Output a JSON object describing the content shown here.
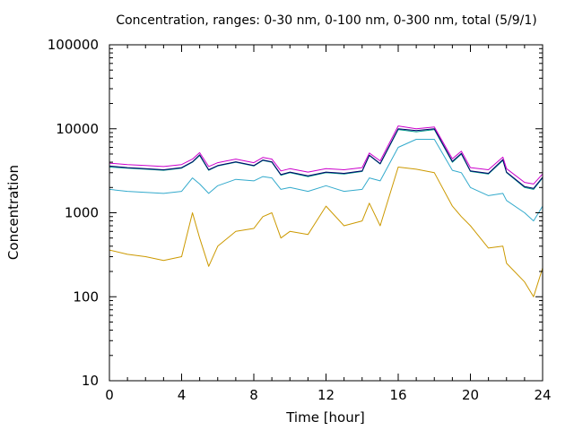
{
  "chart_data": {
    "type": "line",
    "title": "Concentration, ranges: 0-30 nm, 0-100 nm, 0-300 nm, total (5/9/1)",
    "xlabel": "Time [hour]",
    "ylabel": "Concentration",
    "xlim": [
      0,
      24
    ],
    "ylim": [
      10,
      100000
    ],
    "yscale": "log",
    "grid": false,
    "legend": "none",
    "xticks": [
      0,
      4,
      8,
      12,
      16,
      20,
      24
    ],
    "xtick_labels": [
      "0",
      "4",
      "8",
      "12",
      "16",
      "20",
      "24"
    ],
    "yticks": [
      10,
      100,
      1000,
      10000,
      100000
    ],
    "ytick_labels": [
      "10",
      "100",
      "1000",
      "10000",
      "100000"
    ],
    "x": [
      0,
      1,
      2,
      3,
      4,
      4.6,
      5,
      5.5,
      6,
      7,
      8,
      8.5,
      9,
      9.5,
      10,
      11,
      12,
      13,
      14,
      14.4,
      15,
      16,
      17,
      18,
      19,
      19.5,
      20,
      21,
      21.8,
      22,
      23,
      23.5,
      24
    ],
    "series": [
      {
        "color": "#cc9900",
        "values": [
          360,
          320,
          300,
          270,
          300,
          1000,
          500,
          230,
          400,
          600,
          650,
          900,
          1000,
          500,
          600,
          550,
          1200,
          700,
          800,
          1300,
          700,
          3500,
          3300,
          3000,
          1200,
          900,
          700,
          380,
          400,
          250,
          150,
          100,
          220
        ]
      },
      {
        "color": "#33aacc",
        "values": [
          1900,
          1800,
          1750,
          1700,
          1800,
          2600,
          2200,
          1700,
          2100,
          2500,
          2400,
          2700,
          2600,
          1900,
          2000,
          1800,
          2100,
          1800,
          1900,
          2600,
          2400,
          6000,
          7500,
          7500,
          3200,
          3000,
          2000,
          1600,
          1700,
          1400,
          1000,
          800,
          1200
        ]
      },
      {
        "color": "#009988",
        "values": [
          3500,
          3400,
          3300,
          3200,
          3400,
          4000,
          4800,
          3200,
          3600,
          4000,
          3600,
          4200,
          4000,
          2800,
          3000,
          2700,
          3000,
          2900,
          3100,
          4800,
          3800,
          9800,
          9200,
          9800,
          4000,
          5000,
          3100,
          2900,
          4200,
          3000,
          2000,
          1900,
          2600
        ]
      },
      {
        "color": "#000066",
        "values": [
          3600,
          3450,
          3350,
          3250,
          3450,
          4050,
          4900,
          3250,
          3650,
          4050,
          3650,
          4250,
          4050,
          2850,
          3050,
          2750,
          3050,
          2950,
          3150,
          4850,
          3850,
          10000,
          9500,
          10000,
          4100,
          5100,
          3150,
          2950,
          4300,
          3050,
          2050,
          1950,
          2650
        ]
      },
      {
        "color": "#cc00cc",
        "values": [
          3900,
          3750,
          3650,
          3550,
          3750,
          4350,
          5200,
          3550,
          3950,
          4350,
          3950,
          4550,
          4350,
          3150,
          3350,
          3050,
          3350,
          3250,
          3450,
          5150,
          4150,
          10800,
          10000,
          10500,
          4400,
          5400,
          3450,
          3250,
          4600,
          3350,
          2300,
          2200,
          2900
        ]
      }
    ]
  }
}
